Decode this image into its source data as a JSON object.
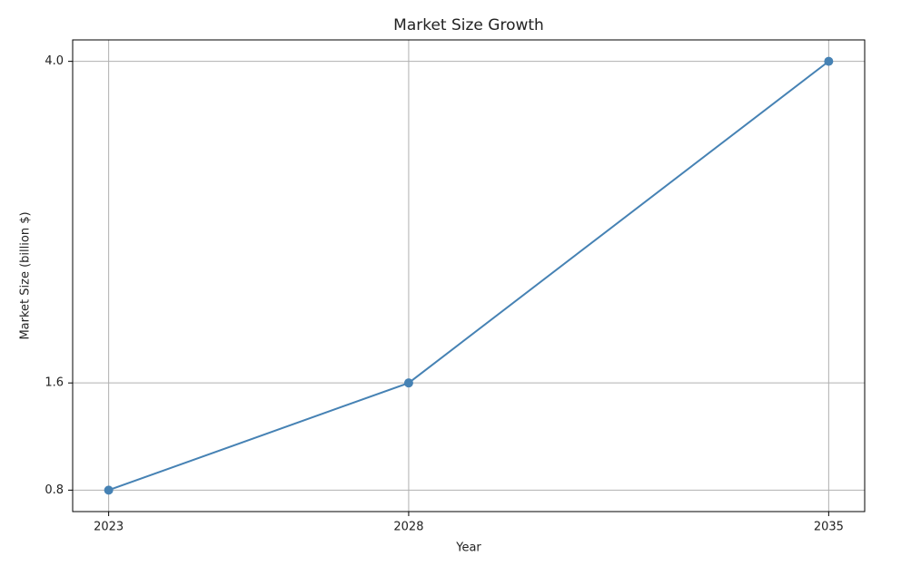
{
  "chart_data": {
    "type": "line",
    "title": "Market Size Growth",
    "x_label": "Year",
    "y_label": "Market Size (billion $)",
    "x": [
      2023,
      2028,
      2035
    ],
    "values": [
      0.8,
      1.6,
      4.0
    ],
    "color": "#4682b4",
    "xlim": [
      2022.4,
      2035.6
    ],
    "xticks": [
      2023,
      2028,
      2035
    ],
    "ylim": [
      0.64,
      4.16
    ],
    "yticks": [
      0.8,
      1.6,
      {
        "value": 4.0,
        "label": "4.0"
      }
    ],
    "grid": true
  }
}
